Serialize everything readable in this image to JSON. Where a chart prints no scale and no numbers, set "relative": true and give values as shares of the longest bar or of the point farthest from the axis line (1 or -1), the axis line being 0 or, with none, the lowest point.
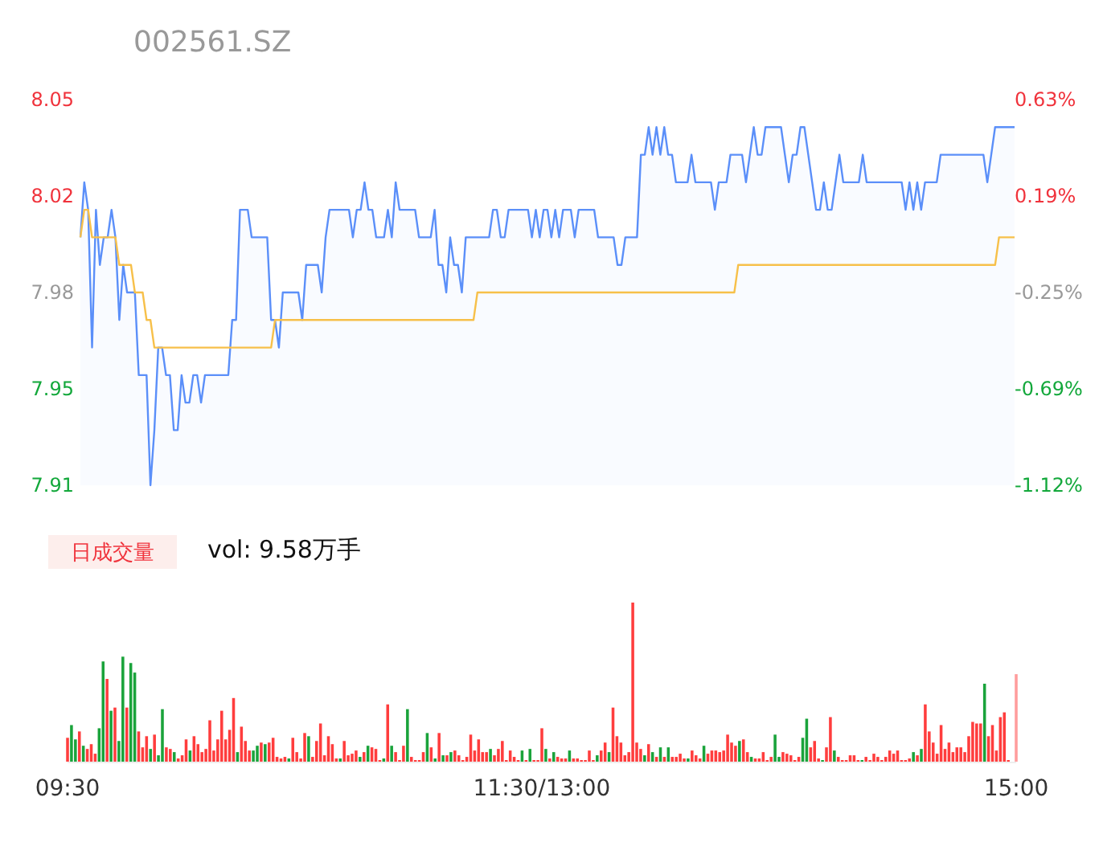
{
  "chart_data": [
    {
      "type": "line",
      "title": "002561.SZ",
      "tick_labels": "y",
      "categories": [
        null,
        null,
        null,
        null,
        null,
        null,
        null,
        null,
        null,
        null,
        null,
        null,
        null,
        null,
        null,
        null,
        null,
        null,
        null,
        null,
        null,
        null,
        null,
        null,
        null,
        null,
        null,
        null,
        null,
        null,
        null,
        null,
        null,
        null,
        null,
        null,
        null,
        null,
        null,
        null,
        null,
        null,
        null,
        null,
        null,
        null,
        null,
        null,
        null,
        null,
        null,
        null,
        null,
        null,
        null,
        null,
        null,
        null,
        null,
        null,
        null,
        null,
        null,
        null,
        null,
        null,
        null,
        null,
        null,
        null,
        null,
        null,
        null,
        null,
        null,
        null,
        null,
        null,
        null,
        null,
        null,
        null,
        null,
        null,
        null,
        null,
        null,
        null,
        null,
        null,
        null,
        null,
        null,
        null,
        null,
        null,
        null,
        null,
        null,
        null,
        null,
        null,
        null,
        null,
        null,
        null,
        null,
        null,
        null,
        null,
        null,
        null,
        null,
        null,
        null,
        null,
        null,
        null,
        null,
        null,
        null,
        null,
        null,
        null,
        null,
        null,
        null,
        null,
        null,
        null,
        null,
        null,
        null,
        null,
        null,
        null,
        null,
        null,
        null,
        null,
        null,
        null,
        null,
        null,
        null,
        null,
        null,
        null,
        null,
        null,
        null,
        null,
        null,
        null,
        null,
        null,
        null,
        null,
        null,
        null,
        null,
        null,
        null,
        null,
        null,
        null,
        null,
        null,
        null,
        null,
        null,
        null,
        null,
        null,
        null,
        null,
        null,
        null,
        null,
        null,
        null,
        null,
        null,
        null,
        null,
        null,
        null,
        null,
        null,
        null,
        null,
        null,
        null,
        null,
        null,
        null,
        null,
        null,
        null,
        null,
        null,
        null,
        null,
        null,
        null,
        null,
        null,
        null,
        null,
        null,
        null,
        null,
        null,
        null,
        null,
        null,
        null,
        null,
        null,
        null,
        null,
        null,
        null,
        null,
        null,
        null,
        null,
        null,
        null,
        null,
        null,
        null,
        null,
        null,
        null,
        null,
        null,
        null,
        null,
        null,
        null
      ],
      "ylim": [
        7.91,
        8.05
      ],
      "yticks": [
        {
          "value": 8.05,
          "label": "8.05"
        },
        {
          "value": 8.015,
          "label": "8.02"
        },
        {
          "value": 7.98,
          "label": "7.98"
        },
        {
          "value": 7.945,
          "label": "7.95"
        },
        {
          "value": 7.91,
          "label": "7.91"
        }
      ],
      "y2lim": [
        -1.125,
        0.625
      ],
      "y2ticks": [
        {
          "value": 0.625,
          "label": "0.63%"
        },
        {
          "value": 0.1875,
          "label": "0.19%"
        },
        {
          "value": -0.25,
          "label": "-0.25%"
        },
        {
          "value": -0.6875,
          "label": "-0.69%"
        },
        {
          "value": -1.125,
          "label": "-1.12%"
        }
      ],
      "series": [
        {
          "type": "area",
          "color": "#5b8ff9",
          "values": [
            8.0,
            8.02,
            8.01,
            7.96,
            8.01,
            7.99,
            8.0,
            8.0,
            8.01,
            8.0,
            7.97,
            7.99,
            7.98,
            7.98,
            7.98,
            7.95,
            7.95,
            7.95,
            7.91,
            7.93,
            7.96,
            7.96,
            7.95,
            7.95,
            7.93,
            7.93,
            7.95,
            7.94,
            7.94,
            7.95,
            7.95,
            7.94,
            7.95,
            7.95,
            7.95,
            7.95,
            7.95,
            7.95,
            7.95,
            7.97,
            7.97,
            8.01,
            8.01,
            8.01,
            8.0,
            8.0,
            8.0,
            8.0,
            8.0,
            7.97,
            7.97,
            7.96,
            7.98,
            7.98,
            7.98,
            7.98,
            7.98,
            7.97,
            7.99,
            7.99,
            7.99,
            7.99,
            7.98,
            8.0,
            8.01,
            8.01,
            8.01,
            8.01,
            8.01,
            8.01,
            8.0,
            8.01,
            8.01,
            8.02,
            8.01,
            8.01,
            8.0,
            8.0,
            8.0,
            8.01,
            8.0,
            8.02,
            8.01,
            8.01,
            8.01,
            8.01,
            8.01,
            8.0,
            8.0,
            8.0,
            8.0,
            8.01,
            7.99,
            7.99,
            7.98,
            8.0,
            7.99,
            7.99,
            7.98,
            8.0,
            8.0,
            8.0,
            8.0,
            8.0,
            8.0,
            8.0,
            8.01,
            8.01,
            8.0,
            8.0,
            8.01,
            8.01,
            8.01,
            8.01,
            8.01,
            8.01,
            8.0,
            8.01,
            8.0,
            8.01,
            8.01,
            8.0,
            8.01,
            8.0,
            8.01,
            8.01,
            8.01,
            8.0,
            8.01,
            8.01,
            8.01,
            8.01,
            8.01,
            8.0,
            8.0,
            8.0,
            8.0,
            8.0,
            7.99,
            7.99,
            8.0,
            8.0,
            8.0,
            8.0,
            8.03,
            8.03,
            8.04,
            8.03,
            8.04,
            8.03,
            8.04,
            8.03,
            8.03,
            8.02,
            8.02,
            8.02,
            8.02,
            8.03,
            8.02,
            8.02,
            8.02,
            8.02,
            8.02,
            8.01,
            8.02,
            8.02,
            8.02,
            8.03,
            8.03,
            8.03,
            8.03,
            8.02,
            8.03,
            8.04,
            8.03,
            8.03,
            8.04,
            8.04,
            8.04,
            8.04,
            8.04,
            8.03,
            8.02,
            8.03,
            8.03,
            8.04,
            8.04,
            8.03,
            8.02,
            8.01,
            8.01,
            8.02,
            8.01,
            8.01,
            8.02,
            8.03,
            8.02,
            8.02,
            8.02,
            8.02,
            8.02,
            8.03,
            8.02,
            8.02,
            8.02,
            8.02,
            8.02,
            8.02,
            8.02,
            8.02,
            8.02,
            8.02,
            8.01,
            8.02,
            8.01,
            8.02,
            8.01,
            8.02,
            8.02,
            8.02,
            8.02,
            8.03,
            8.03,
            8.03,
            8.03,
            8.03,
            8.03,
            8.03,
            8.03,
            8.03,
            8.03,
            8.03,
            8.03,
            8.02,
            8.03,
            8.04,
            8.04,
            8.04,
            8.04,
            8.04,
            8.04
          ]
        },
        {
          "type": "line",
          "color": "#f7c04a",
          "values": [
            8.0,
            8.01,
            8.01,
            8.0,
            8.0,
            8.0,
            8.0,
            8.0,
            8.0,
            8.0,
            7.99,
            7.99,
            7.99,
            7.99,
            7.98,
            7.98,
            7.98,
            7.97,
            7.97,
            7.96,
            7.96,
            7.96,
            7.96,
            7.96,
            7.96,
            7.96,
            7.96,
            7.96,
            7.96,
            7.96,
            7.96,
            7.96,
            7.96,
            7.96,
            7.96,
            7.96,
            7.96,
            7.96,
            7.96,
            7.96,
            7.96,
            7.96,
            7.96,
            7.96,
            7.96,
            7.96,
            7.96,
            7.96,
            7.96,
            7.96,
            7.97,
            7.97,
            7.97,
            7.97,
            7.97,
            7.97,
            7.97,
            7.97,
            7.97,
            7.97,
            7.97,
            7.97,
            7.97,
            7.97,
            7.97,
            7.97,
            7.97,
            7.97,
            7.97,
            7.97,
            7.97,
            7.97,
            7.97,
            7.97,
            7.97,
            7.97,
            7.97,
            7.97,
            7.97,
            7.97,
            7.97,
            7.97,
            7.97,
            7.97,
            7.97,
            7.97,
            7.97,
            7.97,
            7.97,
            7.97,
            7.97,
            7.97,
            7.97,
            7.97,
            7.97,
            7.97,
            7.97,
            7.97,
            7.97,
            7.97,
            7.97,
            7.97,
            7.98,
            7.98,
            7.98,
            7.98,
            7.98,
            7.98,
            7.98,
            7.98,
            7.98,
            7.98,
            7.98,
            7.98,
            7.98,
            7.98,
            7.98,
            7.98,
            7.98,
            7.98,
            7.98,
            7.98,
            7.98,
            7.98,
            7.98,
            7.98,
            7.98,
            7.98,
            7.98,
            7.98,
            7.98,
            7.98,
            7.98,
            7.98,
            7.98,
            7.98,
            7.98,
            7.98,
            7.98,
            7.98,
            7.98,
            7.98,
            7.98,
            7.98,
            7.98,
            7.98,
            7.98,
            7.98,
            7.98,
            7.98,
            7.98,
            7.98,
            7.98,
            7.98,
            7.98,
            7.98,
            7.98,
            7.98,
            7.98,
            7.98,
            7.98,
            7.98,
            7.98,
            7.98,
            7.98,
            7.98,
            7.98,
            7.98,
            7.98,
            7.99,
            7.99,
            7.99,
            7.99,
            7.99,
            7.99,
            7.99,
            7.99,
            7.99,
            7.99,
            7.99,
            7.99,
            7.99,
            7.99,
            7.99,
            7.99,
            7.99,
            7.99,
            7.99,
            7.99,
            7.99,
            7.99,
            7.99,
            7.99,
            7.99,
            7.99,
            7.99,
            7.99,
            7.99,
            7.99,
            7.99,
            7.99,
            7.99,
            7.99,
            7.99,
            7.99,
            7.99,
            7.99,
            7.99,
            7.99,
            7.99,
            7.99,
            7.99,
            7.99,
            7.99,
            7.99,
            7.99,
            7.99,
            7.99,
            7.99,
            7.99,
            7.99,
            7.99,
            7.99,
            7.99,
            7.99,
            7.99,
            7.99,
            7.99,
            7.99,
            7.99,
            7.99,
            7.99,
            7.99,
            7.99,
            7.99,
            7.99,
            8.0,
            8.0,
            8.0,
            8.0,
            8.0
          ]
        }
      ]
    },
    {
      "type": "bar",
      "relative": true,
      "tick_labels": "x",
      "categories": [
        "09:30",
        null,
        null,
        null,
        null,
        null,
        null,
        null,
        null,
        null,
        null,
        null,
        null,
        null,
        null,
        null,
        null,
        null,
        null,
        null,
        null,
        null,
        null,
        null,
        null,
        null,
        null,
        null,
        null,
        null,
        null,
        null,
        null,
        null,
        null,
        null,
        null,
        null,
        null,
        null,
        null,
        null,
        null,
        null,
        null,
        null,
        null,
        null,
        null,
        null,
        null,
        null,
        null,
        null,
        null,
        null,
        null,
        null,
        null,
        null,
        null,
        null,
        null,
        null,
        null,
        null,
        null,
        null,
        null,
        null,
        null,
        null,
        null,
        null,
        null,
        null,
        null,
        null,
        null,
        null,
        null,
        null,
        null,
        null,
        null,
        null,
        null,
        null,
        null,
        null,
        null,
        null,
        null,
        null,
        null,
        null,
        null,
        null,
        null,
        null,
        null,
        null,
        null,
        null,
        null,
        null,
        null,
        null,
        null,
        null,
        null,
        null,
        null,
        null,
        null,
        null,
        null,
        null,
        null,
        null,
        "11:30/13:00",
        null,
        null,
        null,
        null,
        null,
        null,
        null,
        null,
        null,
        null,
        null,
        null,
        null,
        null,
        null,
        null,
        null,
        null,
        null,
        null,
        null,
        null,
        null,
        null,
        null,
        null,
        null,
        null,
        null,
        null,
        null,
        null,
        null,
        null,
        null,
        null,
        null,
        null,
        null,
        null,
        null,
        null,
        null,
        null,
        null,
        null,
        null,
        null,
        null,
        null,
        null,
        null,
        null,
        null,
        null,
        null,
        null,
        null,
        null,
        null,
        null,
        null,
        null,
        null,
        null,
        null,
        null,
        null,
        null,
        null,
        null,
        null,
        null,
        null,
        null,
        null,
        null,
        null,
        null,
        null,
        null,
        null,
        null,
        null,
        null,
        null,
        null,
        null,
        null,
        null,
        null,
        null,
        null,
        null,
        null,
        null,
        null,
        null,
        null,
        null,
        null,
        null,
        null,
        null,
        null,
        null,
        null,
        null,
        null,
        null,
        null,
        null,
        null,
        null,
        null,
        null,
        null,
        null,
        null,
        "15:00"
      ],
      "annotations": [
        "日成交量",
        "vol: 9.58万手"
      ],
      "values": [
        0.15,
        0.23,
        0.14,
        0.19,
        0.1,
        0.08,
        0.11,
        0.05,
        0.21,
        0.63,
        0.52,
        0.32,
        0.34,
        0.13,
        0.66,
        0.34,
        0.62,
        0.56,
        0.19,
        0.09,
        0.16,
        0.08,
        0.17,
        0.04,
        0.33,
        0.09,
        0.08,
        0.06,
        0.02,
        0.04,
        0.14,
        0.07,
        0.16,
        0.11,
        0.06,
        0.08,
        0.26,
        0.07,
        0.14,
        0.32,
        0.14,
        0.2,
        0.4,
        0.06,
        0.22,
        0.13,
        0.07,
        0.07,
        0.1,
        0.12,
        0.11,
        0.12,
        0.15,
        0.03,
        0.02,
        0.03,
        0.02,
        0.15,
        0.06,
        0.02,
        0.18,
        0.16,
        0.03,
        0.13,
        0.24,
        0.04,
        0.16,
        0.11,
        0.02,
        0.02,
        0.13,
        0.04,
        0.05,
        0.07,
        0.03,
        0.06,
        0.1,
        0.09,
        0.08,
        0.01,
        0.02,
        0.36,
        0.1,
        0.06,
        0.01,
        0.1,
        0.33,
        0.03,
        0.01,
        0.01,
        0.06,
        0.18,
        0.09,
        0.02,
        0.18,
        0.04,
        0.04,
        0.06,
        0.07,
        0.04,
        0.01,
        0.03,
        0.17,
        0.07,
        0.14,
        0.06,
        0.06,
        0.08,
        0.04,
        0.08,
        0.13,
        0.01,
        0.07,
        0.03,
        0.01,
        0.07,
        0.01,
        0.08,
        0.01,
        0.01,
        0.21,
        0.08,
        0.02,
        0.06,
        0.03,
        0.02,
        0.02,
        0.07,
        0.02,
        0.02,
        0.01,
        0.01,
        0.07,
        0.01,
        0.04,
        0.07,
        0.12,
        0.06,
        0.34,
        0.16,
        0.12,
        0.04,
        0.06,
        1,
        0.12,
        0.08,
        0.04,
        0.11,
        0.06,
        0.03,
        0.09,
        0.03,
        0.09,
        0.03,
        0.03,
        0.05,
        0.02,
        0.02,
        0.07,
        0.04,
        0.02,
        0.1,
        0.05,
        0.07,
        0.07,
        0.06,
        0.07,
        0.17,
        0.12,
        0.1,
        0.13,
        0.14,
        0.06,
        0.03,
        0.02,
        0.02,
        0.06,
        0.01,
        0.03,
        0.17,
        0.03,
        0.06,
        0.05,
        0.04,
        0.01,
        0.03,
        0.15,
        0.27,
        0.09,
        0.13,
        0.02,
        0.01,
        0.09,
        0.28,
        0.07,
        0.03,
        0.01,
        0.01,
        0.04,
        0.04,
        0.01,
        0.01,
        0.03,
        0.01,
        0.05,
        0.03,
        0.01,
        0.03,
        0.07,
        0.05,
        0.07,
        0.01,
        0.01,
        0.02,
        0.06,
        0.04,
        0.08,
        0.36,
        0.19,
        0.12,
        0.05,
        0.23,
        0.08,
        0.12,
        0.06,
        0.09,
        0.09,
        0.06,
        0.16,
        0.25,
        0.24,
        0.24,
        0.49,
        0.16,
        0.23,
        0.07,
        0.28,
        0.31,
        0.01,
        0,
        0.55
      ],
      "colors": [
        "#ff3d3d",
        "#1aa33b",
        "#1aa33b",
        "#ff3d3d",
        "#1aa33b",
        "#ff3d3d",
        "#ff3d3d",
        "#ff3d3d",
        "#1aa33b",
        "#1aa33b",
        "#ff3d3d",
        "#1aa33b",
        "#ff3d3d",
        "#1aa33b",
        "#1aa33b",
        "#ff3d3d",
        "#1aa33b",
        "#1aa33b",
        "#ff3d3d",
        "#ff3d3d",
        "#ff3d3d",
        "#1aa33b",
        "#ff3d3d",
        "#1aa33b",
        "#1aa33b",
        "#ff3d3d",
        "#ff3d3d",
        "#1aa33b",
        "#ff3d3d",
        "#ff3d3d",
        "#ff3d3d",
        "#1aa33b",
        "#ff3d3d",
        "#ff3d3d",
        "#ff3d3d",
        "#ff3d3d",
        "#ff3d3d",
        "#ff3d3d",
        "#ff3d3d",
        "#ff3d3d",
        "#ff3d3d",
        "#ff3d3d",
        "#ff3d3d",
        "#1aa33b",
        "#ff3d3d",
        "#ff3d3d",
        "#ff3d3d",
        "#1aa33b",
        "#1aa33b",
        "#ff3d3d",
        "#1aa33b",
        "#ff3d3d",
        "#ff3d3d",
        "#ff3d3d",
        "#ff3d3d",
        "#ff3d3d",
        "#1aa33b",
        "#ff3d3d",
        "#ff3d3d",
        "#ff3d3d",
        "#ff3d3d",
        "#1aa33b",
        "#ff3d3d",
        "#ff3d3d",
        "#ff3d3d",
        "#ff3d3d",
        "#ff3d3d",
        "#ff3d3d",
        "#ff3d3d",
        "#1aa33b",
        "#ff3d3d",
        "#ff3d3d",
        "#ff3d3d",
        "#ff3d3d",
        "#1aa33b",
        "#ff3d3d",
        "#1aa33b",
        "#ff3d3d",
        "#ff3d3d",
        "#ff3d3d",
        "#1aa33b",
        "#ff3d3d",
        "#1aa33b",
        "#ff3d3d",
        "#ff3d3d",
        "#ff3d3d",
        "#1aa33b",
        "#ff3d3d",
        "#ff3d3d",
        "#ff3d3d",
        "#ff3d3d",
        "#1aa33b",
        "#ff3d3d",
        "#1aa33b",
        "#ff3d3d",
        "#1aa33b",
        "#ff3d3d",
        "#1aa33b",
        "#ff3d3d",
        "#ff3d3d",
        "#ff3d3d",
        "#ff3d3d",
        "#ff3d3d",
        "#ff3d3d",
        "#ff3d3d",
        "#ff3d3d",
        "#ff3d3d",
        "#1aa33b",
        "#ff3d3d",
        "#ff3d3d",
        "#ff3d3d",
        "#ff3d3d",
        "#ff3d3d",
        "#ff3d3d",
        "#ff3d3d",
        "#1aa33b",
        "#ff3d3d",
        "#1aa33b",
        "#ff3d3d",
        "#ff3d3d",
        "#ff3d3d",
        "#1aa33b",
        "#ff3d3d",
        "#1aa33b",
        "#ff3d3d",
        "#ff3d3d",
        "#ff3d3d",
        "#1aa33b",
        "#ff3d3d",
        "#ff3d3d",
        "#ff3d3d",
        "#ff3d3d",
        "#ff3d3d",
        "#ff3d3d",
        "#1aa33b",
        "#ff3d3d",
        "#ff3d3d",
        "#1aa33b",
        "#ff3d3d",
        "#ff3d3d",
        "#ff3d3d",
        "#ff3d3d",
        "#ff3d3d",
        "#ff3d3d",
        "#ff3d3d",
        "#ff3d3d",
        "#1aa33b",
        "#ff3d3d",
        "#1aa33b",
        "#ff3d3d",
        "#1aa33b",
        "#ff3d3d",
        "#1aa33b",
        "#ff3d3d",
        "#ff3d3d",
        "#ff3d3d",
        "#ff3d3d",
        "#1aa33b",
        "#ff3d3d",
        "#ff3d3d",
        "#ff3d3d",
        "#1aa33b",
        "#ff3d3d",
        "#ff3d3d",
        "#ff3d3d",
        "#ff3d3d",
        "#ff3d3d",
        "#ff3d3d",
        "#ff3d3d",
        "#ff3d3d",
        "#1aa33b",
        "#ff3d3d",
        "#ff3d3d",
        "#1aa33b",
        "#ff3d3d",
        "#ff3d3d",
        "#ff3d3d",
        "#ff3d3d",
        "#ff3d3d",
        "#1aa33b",
        "#1aa33b",
        "#ff3d3d",
        "#ff3d3d",
        "#ff3d3d",
        "#ff3d3d",
        "#ff3d3d",
        "#1aa33b",
        "#1aa33b",
        "#ff3d3d",
        "#ff3d3d",
        "#ff3d3d",
        "#1aa33b",
        "#ff3d3d",
        "#ff3d3d",
        "#1aa33b",
        "#ff3d3d",
        "#ff3d3d",
        "#ff3d3d",
        "#ff3d3d",
        "#ff3d3d",
        "#ff3d3d",
        "#1aa33b",
        "#ff3d3d",
        "#ff3d3d",
        "#ff3d3d",
        "#ff3d3d",
        "#ff3d3d",
        "#ff3d3d",
        "#ff3d3d",
        "#ff3d3d",
        "#ff3d3d",
        "#ff3d3d",
        "#ff3d3d",
        "#ff3d3d",
        "#1aa33b",
        "#ff3d3d",
        "#1aa33b",
        "#ff3d3d",
        "#ff3d3d",
        "#ff3d3d",
        "#ff3d3d",
        "#ff3d3d",
        "#ff3d3d",
        "#ff3d3d",
        "#ff3d3d",
        "#ff3d3d",
        "#ff3d3d",
        "#ff3d3d",
        "#ff3d3d",
        "#ff3d3d",
        "#ff3d3d",
        "#ff3d3d",
        "#1aa33b",
        "#ff3d3d",
        "#ff3d3d",
        "#ff3d3d",
        "#ff3d3d",
        "#ff3d3d",
        "#ff3d3d",
        "#ff3d3d",
        "#ff9c9c"
      ]
    }
  ]
}
